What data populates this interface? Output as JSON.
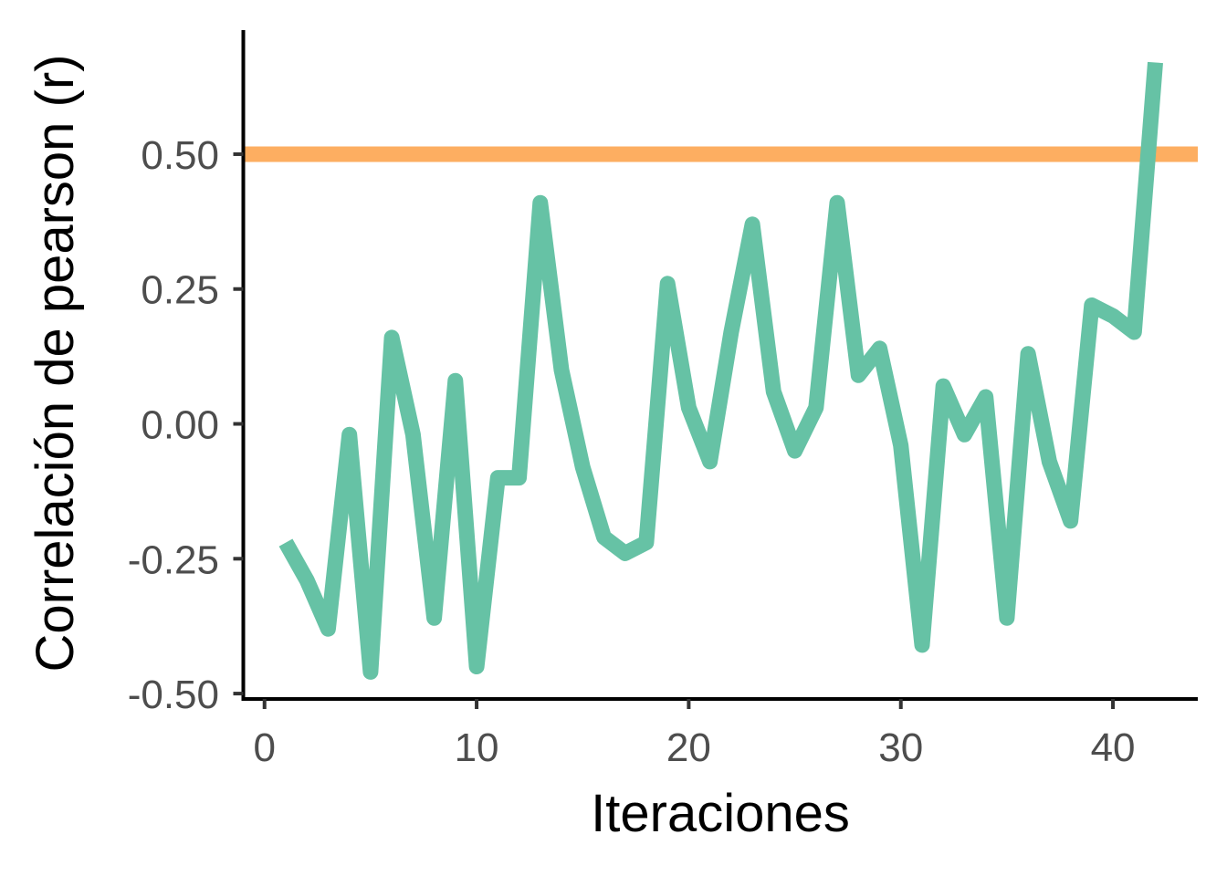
{
  "chart_data": {
    "type": "line",
    "title": "",
    "xlabel": "Iteraciones",
    "ylabel": "Correlación de pearson (r)",
    "xlim": [
      -1,
      44
    ],
    "ylim": [
      -0.51,
      0.73
    ],
    "x_ticks": [
      0,
      10,
      20,
      30,
      40
    ],
    "x_tick_labels": [
      "0",
      "10",
      "20",
      "30",
      "40"
    ],
    "y_ticks": [
      -0.5,
      -0.25,
      0,
      0.25,
      0.5
    ],
    "y_tick_labels": [
      "-0.50",
      "-0.25",
      "0.00",
      "0.25",
      "0.50"
    ],
    "grid": false,
    "legend": "none",
    "series": [
      {
        "color": "#66C2A5",
        "x": [
          1,
          2,
          3,
          4,
          5,
          6,
          7,
          8,
          9,
          10,
          11,
          12,
          13,
          14,
          15,
          16,
          17,
          18,
          19,
          20,
          21,
          22,
          23,
          24,
          25,
          26,
          27,
          28,
          29,
          30,
          31,
          32,
          33,
          34,
          35,
          36,
          37,
          38,
          39,
          40,
          41,
          42
        ],
        "y": [
          -0.22,
          -0.29,
          -0.38,
          -0.02,
          -0.46,
          0.16,
          -0.02,
          -0.36,
          0.08,
          -0.45,
          -0.1,
          -0.1,
          0.41,
          0.1,
          -0.08,
          -0.21,
          -0.24,
          -0.22,
          0.26,
          0.03,
          -0.07,
          0.17,
          0.37,
          0.06,
          -0.05,
          0.03,
          0.41,
          0.09,
          0.14,
          -0.04,
          -0.41,
          0.07,
          -0.02,
          0.05,
          -0.36,
          0.13,
          -0.07,
          -0.18,
          0.22,
          0.2,
          0.17,
          0.67
        ]
      }
    ],
    "reference_lines": [
      {
        "orientation": "horizontal",
        "y": 0.5,
        "color": "#FDAE61"
      }
    ]
  }
}
